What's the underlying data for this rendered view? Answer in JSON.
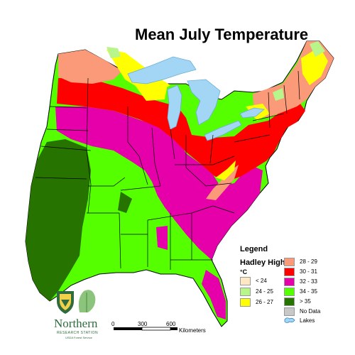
{
  "title": "Mean July Temperature",
  "legend": {
    "heading": "Legend",
    "subheading": "Hadley High",
    "unit": "°C",
    "left_items": [
      {
        "label": "< 24",
        "color": "#ffe8c2"
      },
      {
        "label": "24 - 25",
        "color": "#b8f58a"
      },
      {
        "label": "26 - 27",
        "color": "#ffff00"
      }
    ],
    "right_items": [
      {
        "label": "28 - 29",
        "color": "#fa9a78"
      },
      {
        "label": "30 - 31",
        "color": "#ff0000"
      },
      {
        "label": "32 - 33",
        "color": "#e600a9"
      },
      {
        "label": "34 - 35",
        "color": "#55ff00"
      },
      {
        "label": "> 35",
        "color": "#267300"
      },
      {
        "label": "No Data",
        "color": "#c8c8c8"
      }
    ],
    "lakes_label": "Lakes",
    "lakes_color": "#a3d6f5"
  },
  "scale_bar": {
    "ticks": [
      "0",
      "300",
      "600"
    ],
    "unit": "Kilometers"
  },
  "logo": {
    "name": "Northern",
    "line2": "RESEARCH STATION",
    "line3": "USDA Forest Service",
    "shield_text": "U S"
  }
}
